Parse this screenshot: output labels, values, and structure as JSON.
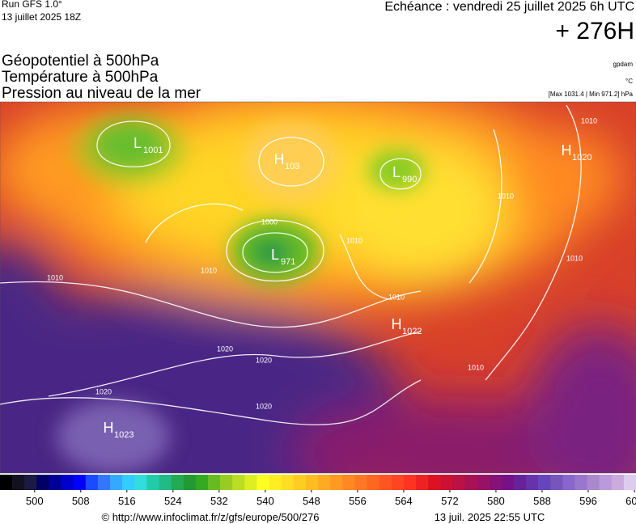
{
  "header": {
    "run": "Run GFS 1.0°",
    "run_date": "13 juillet 2025 18Z",
    "valid": "Echéance : vendredi 25 juillet 2025 6h UTC",
    "lead": "+ 276H",
    "titles": [
      "Géopotentiel à 500hPa",
      "Température à 500hPa",
      "Pression au niveau de la mer"
    ],
    "units": [
      "gpdam",
      "°C",
      "[Max 1031.4 | Min 971.2] hPa"
    ]
  },
  "pressure_centers": [
    {
      "type": "L",
      "value": "1001"
    },
    {
      "type": "H",
      "value": "103"
    },
    {
      "type": "L",
      "value": "990"
    },
    {
      "type": "L",
      "value": "971"
    },
    {
      "type": "H",
      "value": "1020"
    },
    {
      "type": "H",
      "value": "1022"
    },
    {
      "type": "H",
      "value": "1023"
    }
  ],
  "isobar_labels": [
    "1010",
    "1020",
    "1020",
    "1020",
    "1020",
    "1000",
    "1010",
    "1010",
    "1010",
    "1010",
    "1010",
    "1010",
    "1010"
  ],
  "colorbar": {
    "range": [
      494,
      604
    ],
    "ticks": [
      500,
      508,
      516,
      524,
      532,
      540,
      548,
      556,
      564,
      572,
      580,
      588,
      596,
      604
    ],
    "colors": [
      "#000000",
      "#111122",
      "#1a1a44",
      "#000066",
      "#000099",
      "#0000cc",
      "#0000ff",
      "#1a4cff",
      "#3377ff",
      "#33aaff",
      "#33ccff",
      "#33dddd",
      "#22ccaa",
      "#22bb88",
      "#22aa55",
      "#229933",
      "#33aa22",
      "#66bb22",
      "#99cc22",
      "#bbdd22",
      "#ddee22",
      "#ffff22",
      "#ffee22",
      "#ffdd22",
      "#ffcc22",
      "#ffbb22",
      "#ffaa22",
      "#ff9922",
      "#ff8822",
      "#ff7722",
      "#ff6622",
      "#ff5522",
      "#ff4422",
      "#ff3322",
      "#ee2222",
      "#dd1122",
      "#cc1133",
      "#bb1144",
      "#aa1155",
      "#991166",
      "#881177",
      "#771188",
      "#662299",
      "#6633aa",
      "#6644bb",
      "#7755bb",
      "#8866cc",
      "#9977cc",
      "#aa88cc",
      "#bb99dd",
      "#ccaadd",
      "#ddccee"
    ]
  },
  "footer": {
    "source": "© http://www.infoclimat.fr/z/gfs/europe/500/276",
    "generated": "13 juil. 2025 22:55 UTC"
  }
}
